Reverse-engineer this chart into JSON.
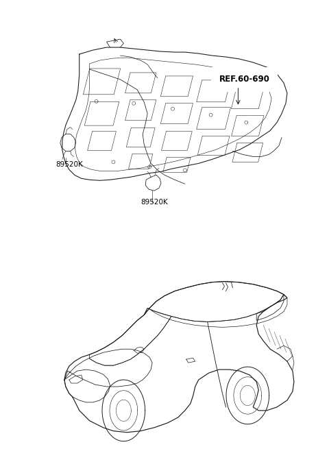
{
  "background_color": "#ffffff",
  "fig_width": 4.8,
  "fig_height": 6.55,
  "dpi": 100,
  "labels": {
    "ref": "REF.60-690",
    "part1": "89520K",
    "part2": "89520K"
  },
  "line_color": "#1a1a1a",
  "line_width": 0.7,
  "text_color": "#000000",
  "font_size": 7.5
}
